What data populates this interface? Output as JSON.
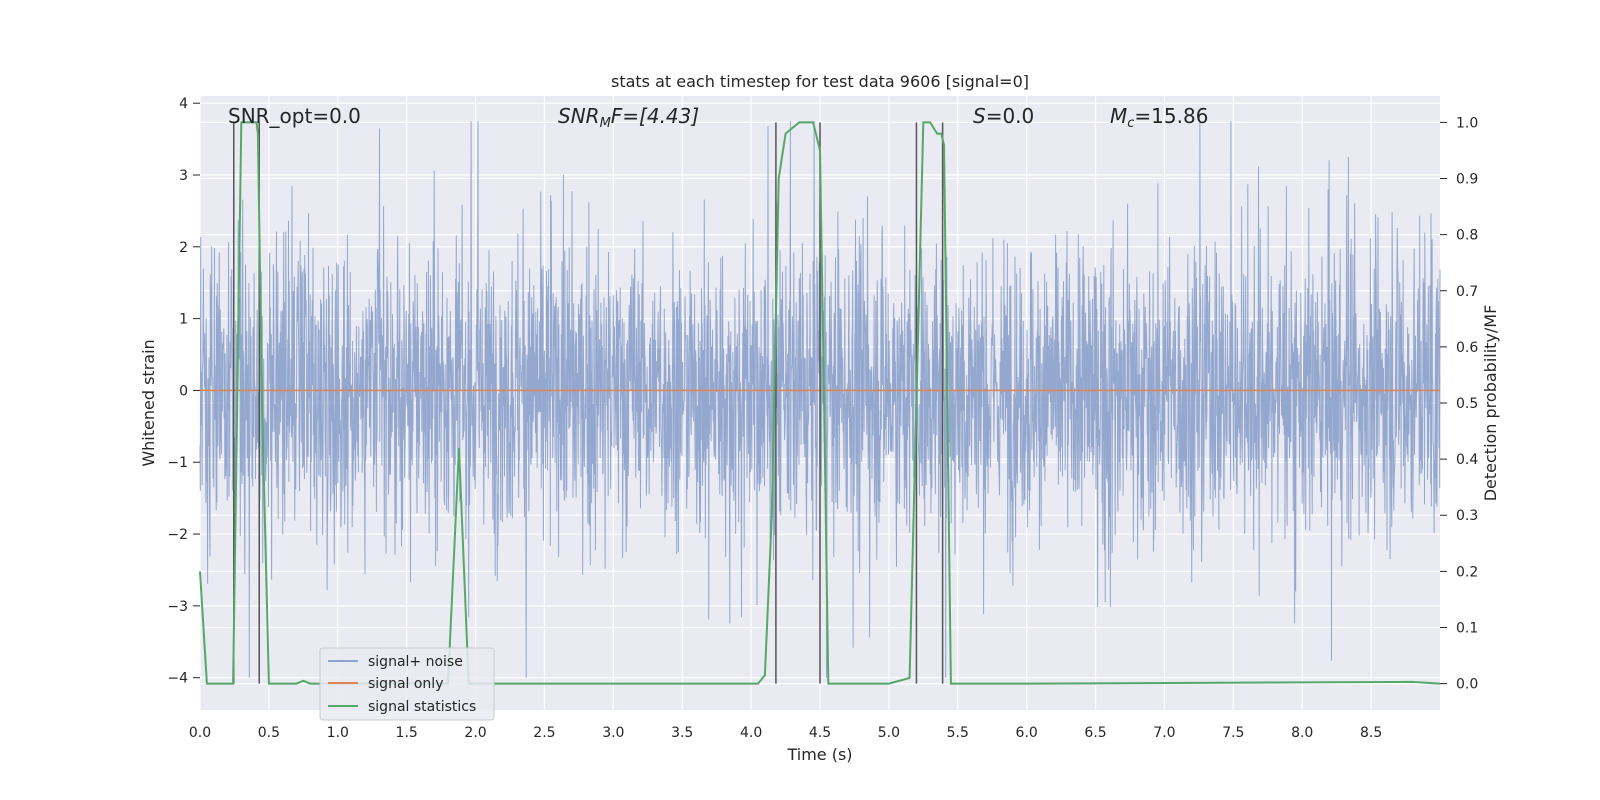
{
  "chart_data": {
    "type": "line",
    "title": "stats at each timestep for test data 9606 [signal=0]",
    "xlabel": "Time (s)",
    "ylabel": "Whitened strain",
    "y2label": "Detection probability/MF",
    "xlim": [
      0.0,
      9.0
    ],
    "ylim": [
      -4.45,
      4.1
    ],
    "y2lim": [
      -0.047,
      1.047
    ],
    "xticks": [
      "0.0",
      "0.5",
      "1.0",
      "1.5",
      "2.0",
      "2.5",
      "3.0",
      "3.5",
      "4.0",
      "4.5",
      "5.0",
      "5.5",
      "6.0",
      "6.5",
      "7.0",
      "7.5",
      "8.0",
      "8.5"
    ],
    "yticks": [
      "4",
      "3",
      "2",
      "1",
      "0",
      "−1",
      "−2",
      "−3",
      "−4"
    ],
    "y2ticks": [
      "1.0",
      "0.9",
      "0.8",
      "0.7",
      "0.6",
      "0.5",
      "0.4",
      "0.3",
      "0.2",
      "0.1",
      "0.0"
    ],
    "grid": true,
    "legend_position": "lower-left",
    "series": [
      {
        "name": "signal+ noise",
        "color": "#8fa4cc",
        "axis": "left",
        "description_values": "random noise trace"
      },
      {
        "name": "signal only",
        "color": "#dd8452",
        "axis": "left",
        "x": [
          0.0,
          9.0
        ],
        "y": [
          0.0,
          0.0
        ]
      },
      {
        "name": "signal statistics",
        "color": "#55a868",
        "axis": "right",
        "x": [
          0.0,
          0.05,
          0.24,
          0.27,
          0.3,
          0.41,
          0.42,
          0.45,
          0.5,
          0.7,
          0.75,
          0.8,
          1.0,
          1.8,
          1.88,
          1.95,
          2.0,
          4.05,
          4.1,
          4.15,
          4.2,
          4.25,
          4.3,
          4.35,
          4.45,
          4.5,
          4.53,
          4.56,
          5.0,
          5.15,
          5.2,
          5.25,
          5.3,
          5.35,
          5.38,
          5.4,
          5.45,
          5.5,
          5.8,
          6.0,
          8.8,
          9.0
        ],
        "y": [
          0.2,
          0.0,
          0.0,
          0.5,
          1.0,
          1.0,
          0.98,
          0.5,
          0.0,
          0.0,
          0.005,
          0.0,
          0.0,
          0.0,
          0.42,
          0.0,
          0.0,
          0.0,
          0.015,
          0.3,
          0.9,
          0.98,
          0.99,
          1.0,
          1.0,
          0.95,
          0.5,
          0.0,
          0.0,
          0.01,
          0.5,
          1.0,
          1.0,
          0.98,
          0.98,
          0.96,
          0.0,
          0.0,
          0.0,
          0.0,
          0.003,
          0.0
        ]
      }
    ],
    "vlines": [
      0.245,
      0.43,
      4.18,
      4.5,
      5.2,
      5.39
    ],
    "annotations": {
      "snr_opt": "SNR_opt=0.0",
      "snr_mf_main": "SNR",
      "snr_mf_sub": "M",
      "snr_mf_rest": "F=[4.43]",
      "s_main": "S",
      "s_rest": "=0.0",
      "mc_main": "M",
      "mc_sub": "c",
      "mc_rest": "=15.86"
    }
  }
}
